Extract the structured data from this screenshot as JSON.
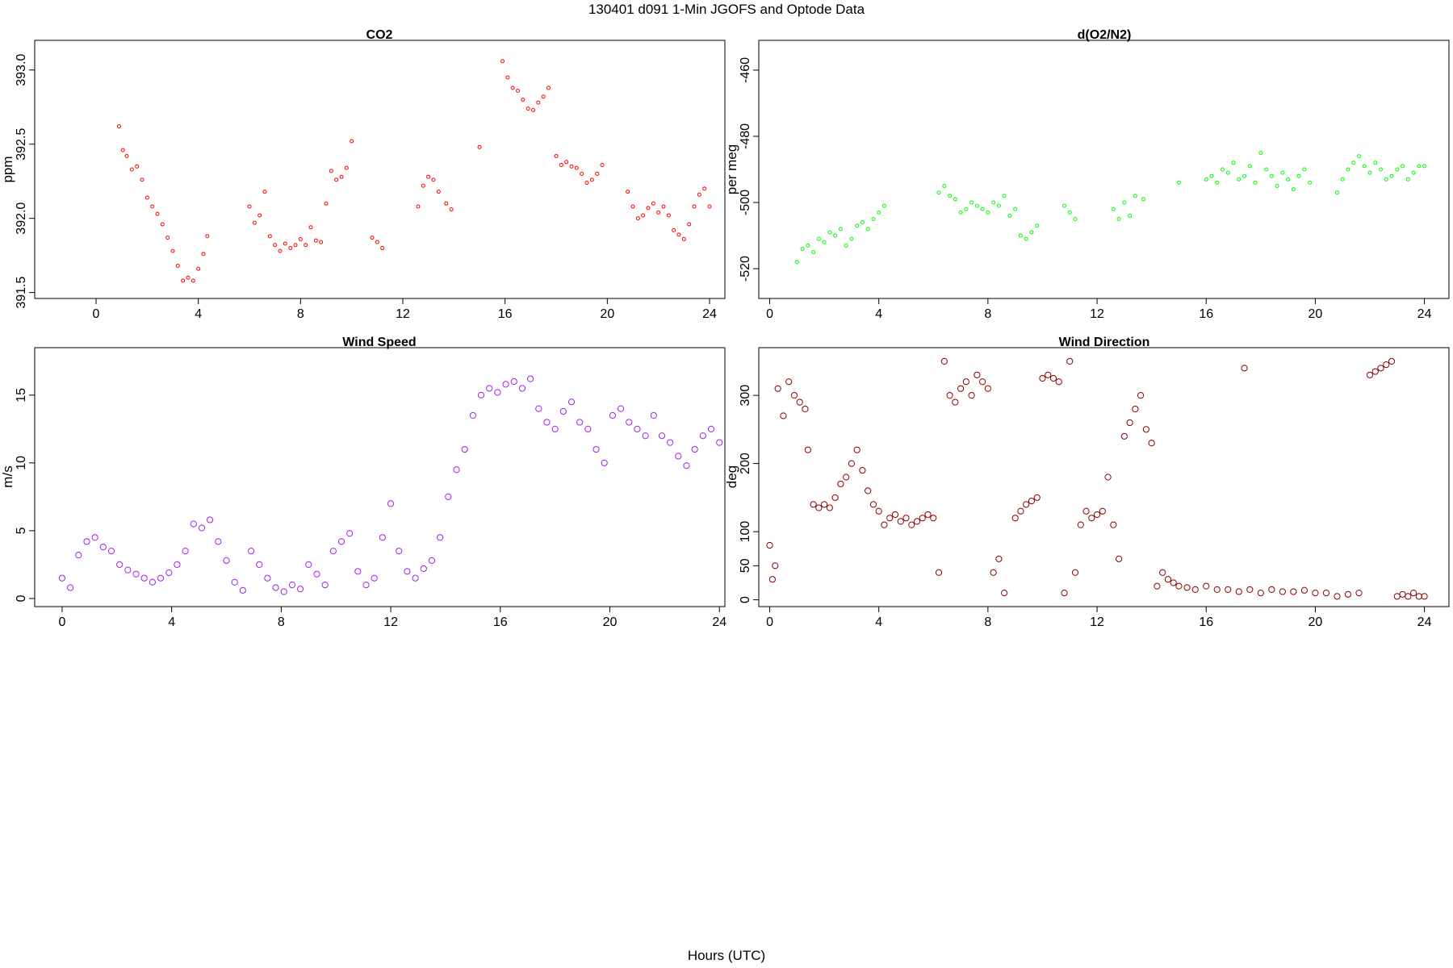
{
  "figure": {
    "title": "130401   d091   1-Min  JGOFS and Optode Data",
    "xlabel": "Hours (UTC)"
  },
  "chart_data": [
    {
      "id": "co2",
      "type": "scatter",
      "title": "CO2",
      "ylabel": "ppm",
      "color": "#ff0000",
      "marker_size": "small",
      "xlim": [
        -2.4,
        24.6
      ],
      "ylim": [
        391.46,
        393.2
      ],
      "x_ticks": [
        0,
        4,
        8,
        12,
        16,
        20,
        24
      ],
      "y_ticks": [
        391.5,
        392.0,
        392.5,
        393.0
      ],
      "y_tick_labels": [
        "391.5",
        "392.0",
        "392.5",
        "393.0"
      ],
      "x": [
        0.9,
        1.05,
        1.2,
        1.4,
        1.6,
        1.8,
        2.0,
        2.2,
        2.4,
        2.6,
        2.8,
        3.0,
        3.2,
        3.4,
        3.6,
        3.8,
        4.0,
        4.2,
        4.35,
        6.0,
        6.2,
        6.4,
        6.6,
        6.8,
        7.0,
        7.2,
        7.4,
        7.6,
        7.8,
        8.0,
        8.2,
        8.4,
        8.6,
        8.8,
        9.0,
        9.2,
        9.4,
        9.6,
        9.8,
        10.0,
        10.8,
        11.0,
        11.2,
        12.6,
        12.8,
        13.0,
        13.2,
        13.4,
        13.7,
        13.9,
        15.0,
        15.9,
        16.1,
        16.3,
        16.5,
        16.7,
        16.9,
        17.1,
        17.3,
        17.5,
        17.7,
        18.0,
        18.2,
        18.4,
        18.6,
        18.8,
        19.0,
        19.2,
        19.4,
        19.6,
        19.8,
        20.8,
        21.0,
        21.2,
        21.4,
        21.6,
        21.8,
        22.0,
        22.2,
        22.4,
        22.6,
        22.8,
        23.0,
        23.2,
        23.4,
        23.6,
        23.8,
        24.0
      ],
      "y": [
        392.62,
        392.46,
        392.42,
        392.33,
        392.35,
        392.26,
        392.14,
        392.08,
        392.03,
        391.96,
        391.87,
        391.78,
        391.68,
        391.58,
        391.6,
        391.58,
        391.66,
        391.76,
        391.88,
        392.08,
        391.97,
        392.02,
        392.18,
        391.88,
        391.82,
        391.78,
        391.83,
        391.8,
        391.82,
        391.86,
        391.82,
        391.94,
        391.85,
        391.84,
        392.1,
        392.32,
        392.26,
        392.28,
        392.34,
        392.52,
        391.87,
        391.84,
        391.8,
        392.08,
        392.22,
        392.28,
        392.26,
        392.18,
        392.1,
        392.06,
        392.48,
        393.06,
        392.95,
        392.88,
        392.86,
        392.8,
        392.74,
        392.73,
        392.78,
        392.82,
        392.88,
        392.42,
        392.36,
        392.38,
        392.35,
        392.34,
        392.3,
        392.24,
        392.26,
        392.3,
        392.36,
        392.18,
        392.08,
        392.0,
        392.02,
        392.07,
        392.1,
        392.04,
        392.08,
        392.02,
        391.92,
        391.89,
        391.86,
        391.96,
        392.08,
        392.16,
        392.2,
        392.08
      ]
    },
    {
      "id": "o2n2",
      "type": "scatter",
      "title": "d(O2/N2)",
      "ylabel": "per meg",
      "color": "#00ff00",
      "marker_size": "small",
      "xlim": [
        -0.4,
        24.9
      ],
      "ylim": [
        -529,
        -451
      ],
      "x_ticks": [
        0,
        4,
        8,
        12,
        16,
        20,
        24
      ],
      "y_ticks": [
        -520,
        -500,
        -480,
        -460
      ],
      "y_tick_labels": [
        "-520",
        "-500",
        "-480",
        "-460"
      ],
      "x": [
        1.0,
        1.2,
        1.4,
        1.6,
        1.8,
        2.0,
        2.2,
        2.4,
        2.6,
        2.8,
        3.0,
        3.2,
        3.4,
        3.6,
        3.8,
        4.0,
        4.2,
        6.2,
        6.4,
        6.6,
        6.8,
        7.0,
        7.2,
        7.4,
        7.6,
        7.8,
        8.0,
        8.2,
        8.4,
        8.6,
        8.8,
        9.0,
        9.2,
        9.4,
        9.6,
        9.8,
        10.8,
        11.0,
        11.2,
        12.6,
        12.8,
        13.0,
        13.2,
        13.4,
        13.7,
        15.0,
        16.0,
        16.2,
        16.4,
        16.6,
        16.8,
        17.0,
        17.2,
        17.4,
        17.6,
        17.8,
        18.0,
        18.2,
        18.4,
        18.6,
        18.8,
        19.0,
        19.2,
        19.4,
        19.6,
        19.8,
        20.8,
        21.0,
        21.2,
        21.4,
        21.6,
        21.8,
        22.0,
        22.2,
        22.4,
        22.6,
        22.8,
        23.0,
        23.2,
        23.4,
        23.6,
        23.8,
        24.0
      ],
      "y": [
        -518,
        -514,
        -513,
        -515,
        -511,
        -512,
        -509,
        -510,
        -508,
        -513,
        -511,
        -507,
        -506,
        -508,
        -505,
        -503,
        -501,
        -497,
        -495,
        -498,
        -499,
        -503,
        -502,
        -500,
        -501,
        -502,
        -503,
        -500,
        -501,
        -498,
        -504,
        -502,
        -510,
        -511,
        -509,
        -507,
        -501,
        -503,
        -505,
        -502,
        -505,
        -500,
        -504,
        -498,
        -499,
        -494,
        -493,
        -492,
        -494,
        -490,
        -491,
        -488,
        -493,
        -492,
        -489,
        -494,
        -485,
        -490,
        -492,
        -495,
        -491,
        -493,
        -496,
        -492,
        -490,
        -494,
        -497,
        -493,
        -490,
        -488,
        -486,
        -489,
        -491,
        -488,
        -490,
        -493,
        -492,
        -490,
        -489,
        -493,
        -491,
        -489,
        -489
      ]
    },
    {
      "id": "wind-speed",
      "type": "scatter",
      "title": "Wind Speed",
      "ylabel": "m/s",
      "color": "#a020f0",
      "marker_size": "large",
      "xlim": [
        -1.0,
        24.2
      ],
      "ylim": [
        -0.6,
        18.5
      ],
      "x_ticks": [
        0,
        4,
        8,
        12,
        16,
        20,
        24
      ],
      "y_ticks": [
        0,
        5,
        10,
        15
      ],
      "y_tick_labels": [
        "0",
        "5",
        "10",
        "15"
      ],
      "x": [
        0.0,
        0.3,
        0.6,
        0.9,
        1.2,
        1.5,
        1.8,
        2.1,
        2.4,
        2.7,
        3.0,
        3.3,
        3.6,
        3.9,
        4.2,
        4.5,
        4.8,
        5.1,
        5.4,
        5.7,
        6.0,
        6.3,
        6.6,
        6.9,
        7.2,
        7.5,
        7.8,
        8.1,
        8.4,
        8.7,
        9.0,
        9.3,
        9.6,
        9.9,
        10.2,
        10.5,
        10.8,
        11.1,
        11.4,
        11.7,
        12.0,
        12.3,
        12.6,
        12.9,
        13.2,
        13.5,
        13.8,
        14.1,
        14.4,
        14.7,
        15.0,
        15.3,
        15.6,
        15.9,
        16.2,
        16.5,
        16.8,
        17.1,
        17.4,
        17.7,
        18.0,
        18.3,
        18.6,
        18.9,
        19.2,
        19.5,
        19.8,
        20.1,
        20.4,
        20.7,
        21.0,
        21.3,
        21.6,
        21.9,
        22.2,
        22.5,
        22.8,
        23.1,
        23.4,
        23.7,
        24.0
      ],
      "y": [
        1.5,
        0.8,
        3.2,
        4.2,
        4.5,
        3.8,
        3.5,
        2.5,
        2.1,
        1.8,
        1.5,
        1.2,
        1.5,
        1.9,
        2.5,
        3.5,
        5.5,
        5.2,
        5.8,
        4.2,
        2.8,
        1.2,
        0.6,
        3.5,
        2.5,
        1.5,
        0.8,
        0.5,
        1.0,
        0.7,
        2.5,
        1.8,
        1.0,
        3.5,
        4.2,
        4.8,
        2.0,
        1.0,
        1.5,
        4.5,
        7.0,
        3.5,
        2.0,
        1.5,
        2.2,
        2.8,
        4.5,
        7.5,
        9.5,
        11.0,
        13.5,
        15.0,
        15.5,
        15.2,
        15.8,
        16.0,
        15.5,
        16.2,
        14.0,
        13.0,
        12.5,
        13.8,
        14.5,
        13.0,
        12.5,
        11.0,
        10.0,
        13.5,
        14.0,
        13.0,
        12.5,
        12.0,
        13.5,
        12.0,
        11.5,
        10.5,
        9.8,
        11.0,
        12.0,
        12.5,
        11.5
      ]
    },
    {
      "id": "wind-direction",
      "type": "scatter",
      "title": "Wind Direction",
      "ylabel": "deg",
      "color": "#8b0000",
      "marker_size": "large",
      "xlim": [
        -0.4,
        24.9
      ],
      "ylim": [
        -10,
        370
      ],
      "x_ticks": [
        0,
        4,
        8,
        12,
        16,
        20,
        24
      ],
      "y_ticks": [
        0,
        50,
        100,
        200,
        300
      ],
      "y_tick_labels": [
        "0",
        "50",
        "100",
        "200",
        "300"
      ],
      "x": [
        0.0,
        0.1,
        0.2,
        0.3,
        0.5,
        0.7,
        0.9,
        1.1,
        1.3,
        1.4,
        1.6,
        1.8,
        2.0,
        2.2,
        2.4,
        2.6,
        2.8,
        3.0,
        3.2,
        3.4,
        3.6,
        3.8,
        4.0,
        4.2,
        4.4,
        4.6,
        4.8,
        5.0,
        5.2,
        5.4,
        5.6,
        5.8,
        6.0,
        6.2,
        6.4,
        6.6,
        6.8,
        7.0,
        7.2,
        7.4,
        7.6,
        7.8,
        8.0,
        8.2,
        8.4,
        8.6,
        9.0,
        9.2,
        9.4,
        9.6,
        9.8,
        10.0,
        10.2,
        10.4,
        10.6,
        10.8,
        11.0,
        11.2,
        11.4,
        11.6,
        11.8,
        12.0,
        12.2,
        12.4,
        12.6,
        12.8,
        13.0,
        13.2,
        13.4,
        13.6,
        13.8,
        14.0,
        14.2,
        14.4,
        14.6,
        14.8,
        15.0,
        15.3,
        15.6,
        16.0,
        16.4,
        16.8,
        17.2,
        17.4,
        17.6,
        18.0,
        18.4,
        18.8,
        19.2,
        19.6,
        20.0,
        20.4,
        20.8,
        21.2,
        21.6,
        22.0,
        22.2,
        22.4,
        22.6,
        22.8,
        23.0,
        23.2,
        23.4,
        23.6,
        23.8,
        24.0
      ],
      "y": [
        80,
        30,
        50,
        310,
        270,
        320,
        300,
        290,
        280,
        220,
        140,
        135,
        140,
        135,
        150,
        170,
        180,
        200,
        220,
        190,
        160,
        140,
        130,
        110,
        120,
        125,
        115,
        120,
        110,
        115,
        120,
        125,
        120,
        40,
        350,
        300,
        290,
        310,
        320,
        300,
        330,
        320,
        310,
        40,
        60,
        10,
        120,
        130,
        140,
        145,
        150,
        325,
        330,
        325,
        320,
        10,
        350,
        40,
        110,
        130,
        120,
        125,
        130,
        180,
        110,
        60,
        240,
        260,
        280,
        300,
        250,
        230,
        20,
        40,
        30,
        25,
        20,
        18,
        15,
        20,
        15,
        15,
        12,
        340,
        15,
        10,
        15,
        12,
        12,
        14,
        10,
        10,
        5,
        8,
        10,
        330,
        335,
        340,
        345,
        350,
        5,
        8,
        5,
        10,
        5,
        5
      ]
    }
  ]
}
